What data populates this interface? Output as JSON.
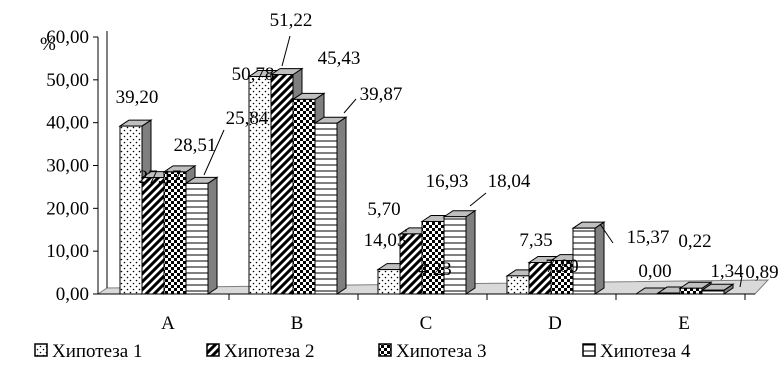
{
  "chart_data": {
    "type": "bar",
    "title": "",
    "xlabel": "",
    "ylabel": "%",
    "ylim": [
      0,
      60
    ],
    "y_ticks": [
      "0,00",
      "10,00",
      "20,00",
      "30,00",
      "40,00",
      "50,00",
      "60,00"
    ],
    "categories": [
      "A",
      "B",
      "C",
      "D",
      "E"
    ],
    "series": [
      {
        "name": "Хипотеза 1",
        "values": [
          39.2,
          50.78,
          5.7,
          4.23,
          0.0
        ],
        "labels": [
          "39,20",
          "50,78",
          "5,70",
          "4,23",
          "0,00"
        ]
      },
      {
        "name": "Хипотеза 2",
        "values": [
          27.17,
          51.22,
          14.03,
          7.35,
          0.22
        ],
        "labels": [
          "27,17",
          "51,22",
          "14,03",
          "7,35",
          "0,22"
        ]
      },
      {
        "name": "Хипотеза 3",
        "values": [
          28.51,
          45.43,
          16.93,
          7.8,
          1.34
        ],
        "labels": [
          "28,51",
          "45,43",
          "16,93",
          "7,80",
          "1,34"
        ]
      },
      {
        "name": "Хипотеза 4",
        "values": [
          25.84,
          39.87,
          18.04,
          15.37,
          0.89
        ],
        "labels": [
          "25,84",
          "39,87",
          "18,04",
          "15,37",
          "0,89"
        ]
      }
    ],
    "legend": "bottom",
    "grid": false,
    "bar_style": "3d-clustered",
    "colors": {
      "face": "#ffffff",
      "outline": "#000000",
      "side": "#7f7f7f",
      "top": "#bfbfbf",
      "floor": "#d9d9d9"
    }
  }
}
